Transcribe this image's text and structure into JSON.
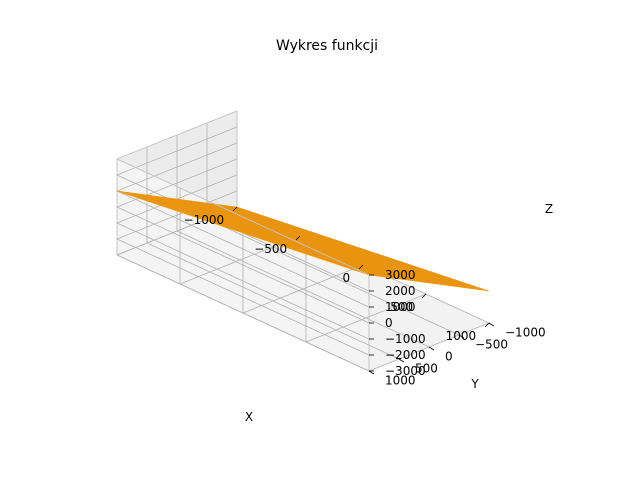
{
  "chart_data": {
    "type": "surface3d",
    "title": "Wykres funkcji",
    "xlabel": "X",
    "ylabel": "Y",
    "zlabel": "Z",
    "xlim": [
      -1000,
      1000
    ],
    "ylim": [
      -1000,
      1000
    ],
    "zlim": [
      -3000,
      3000
    ],
    "xticks": [
      -1000,
      -500,
      0,
      500,
      1000
    ],
    "yticks": [
      -1000,
      -500,
      0,
      500,
      1000
    ],
    "zticks": [
      -3000,
      -2000,
      -1000,
      0,
      1000,
      2000,
      3000
    ],
    "xtick_labels": [
      "−1000",
      "−500",
      "0",
      "500",
      "1000"
    ],
    "ytick_labels": [
      "−1000",
      "−500",
      "0",
      "500",
      "1000"
    ],
    "ztick_labels": [
      "−3000",
      "−2000",
      "−1000",
      "0",
      "1000",
      "2000",
      "3000"
    ],
    "surface": {
      "corners": [
        {
          "x": -1000,
          "y": -1000,
          "z": -3000
        },
        {
          "x": 1000,
          "y": -1000,
          "z": -1000
        },
        {
          "x": 1000,
          "y": 1000,
          "z": 3000
        },
        {
          "x": -1000,
          "y": 1000,
          "z": 1000
        }
      ],
      "color": "#f39c12",
      "grid_color": "#d98a0c"
    },
    "pane_color": "#f2f2f2",
    "grid_color": "#b0b0b0",
    "grid": true
  }
}
